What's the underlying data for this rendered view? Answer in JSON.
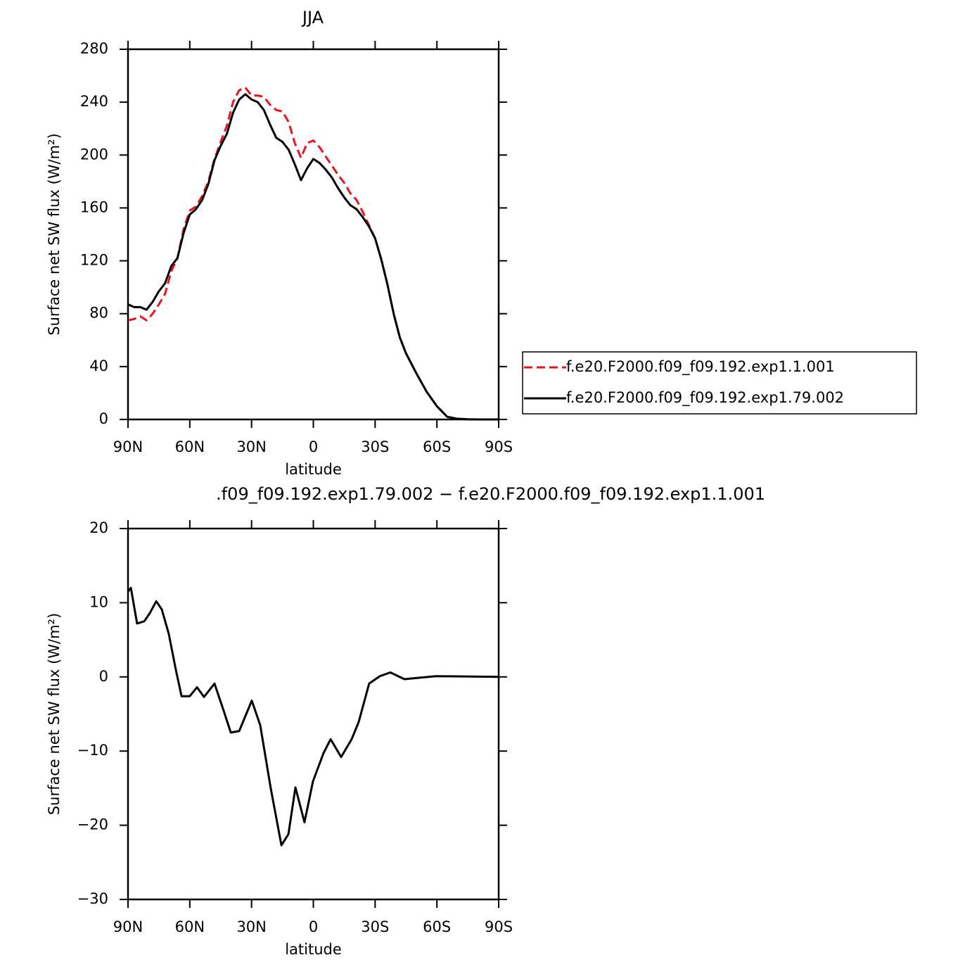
{
  "chart_data": [
    {
      "type": "line",
      "title": "JJA",
      "xlabel": "latitude",
      "ylabel": "Surface net SW flux (W/m²)",
      "x": [
        90,
        87,
        84,
        81,
        78,
        75,
        72,
        69,
        66,
        63,
        60,
        57,
        54,
        51,
        48,
        45,
        42,
        39,
        36,
        33,
        30,
        27,
        24,
        21,
        18,
        15,
        12,
        9,
        6,
        3,
        0,
        -3,
        -6,
        -9,
        -12,
        -15,
        -18,
        -21,
        -24,
        -27,
        -30,
        -33,
        -36,
        -39,
        -42,
        -45,
        -50,
        -55,
        -60,
        -65,
        -70,
        -75,
        -80,
        -85,
        -90
      ],
      "series": [
        {
          "name": "f.e20.F2000.f09_f09.192.exp1.1.001",
          "color": "#e8141c",
          "dashed": true,
          "values": [
            75,
            76,
            78,
            75,
            80,
            87,
            95,
            112,
            122,
            144,
            158,
            161,
            169,
            180,
            197,
            210,
            222,
            240,
            249,
            251,
            245,
            245,
            244,
            238,
            234,
            233,
            225,
            209,
            198,
            209,
            211,
            206,
            199,
            192,
            185,
            179,
            171,
            166,
            157,
            147,
            137,
            121,
            102,
            80,
            62,
            50,
            35,
            21,
            10,
            2,
            0.5,
            0.1,
            0,
            0,
            0
          ]
        },
        {
          "name": "f.e20.F2000.f09_f09.192.exp1.79.002",
          "color": "#000000",
          "dashed": false,
          "values": [
            87,
            85,
            85,
            83,
            89,
            97,
            103,
            116,
            122,
            141,
            155,
            159,
            166,
            178,
            196,
            207,
            216,
            232,
            242,
            246,
            242,
            240,
            234,
            223,
            213,
            210,
            204,
            193,
            181,
            190,
            197,
            194,
            189,
            183,
            175,
            168,
            162,
            159,
            153,
            146,
            137,
            121,
            102,
            80,
            62,
            50,
            35,
            21,
            10,
            2,
            0.5,
            0.1,
            0,
            0,
            0
          ]
        }
      ],
      "xlim": [
        90,
        -90
      ],
      "xticks": [
        {
          "value": 90,
          "label": "90N"
        },
        {
          "value": 60,
          "label": "60N"
        },
        {
          "value": 30,
          "label": "30N"
        },
        0,
        {
          "value": -30,
          "label": "30S"
        },
        {
          "value": -60,
          "label": "60S"
        },
        {
          "value": -90,
          "label": "90S"
        }
      ],
      "ylim": [
        0,
        280
      ],
      "yticks": [
        0,
        40,
        80,
        120,
        160,
        200,
        240,
        280
      ],
      "legend": "right"
    },
    {
      "type": "line",
      "title": ".f09_f09.192.exp1.79.002 − f.e20.F2000.f09_f09.192.exp1.1.001",
      "xlabel": "latitude",
      "ylabel": "Surface net SW flux (W/m²)",
      "x": [
        90,
        88.6,
        85.6,
        82.1,
        79.4,
        76.3,
        73.6,
        70.2,
        66.8,
        64,
        60,
        56.5,
        53.1,
        48,
        43.5,
        40.1,
        36,
        29.9,
        25.8,
        20.7,
        15.5,
        12.1,
        8.7,
        4.3,
        0.2,
        -4.9,
        -8.4,
        -13.5,
        -18.6,
        -22,
        -27.1,
        -32.3,
        -37.4,
        -44.2,
        -59.6,
        -90
      ],
      "series": [
        {
          "color": "#000000",
          "dashed": false,
          "values": [
            11.5,
            12,
            7.2,
            7.5,
            8.6,
            10.2,
            9.1,
            5.8,
            1,
            -2.6,
            -2.6,
            -1.4,
            -2.7,
            -0.9,
            -4.6,
            -7.5,
            -7.3,
            -3.2,
            -6.5,
            -15,
            -22.7,
            -21.2,
            -14.9,
            -19.6,
            -14.1,
            -10.3,
            -8.4,
            -10.8,
            -8.4,
            -6.1,
            -0.9,
            0.1,
            0.6,
            -0.3,
            0.1,
            0
          ]
        }
      ],
      "xlim": [
        90,
        -90
      ],
      "xticks": [
        {
          "value": 90,
          "label": "90N"
        },
        {
          "value": 60,
          "label": "60N"
        },
        {
          "value": 30,
          "label": "30N"
        },
        0,
        {
          "value": -30,
          "label": "30S"
        },
        {
          "value": -60,
          "label": "60S"
        },
        {
          "value": -90,
          "label": "90S"
        }
      ],
      "ylim": [
        -30,
        20
      ],
      "yticks": [
        {
          "value": -30,
          "label": "−30"
        },
        {
          "value": -20,
          "label": "−20"
        },
        {
          "value": -10,
          "label": "−10"
        },
        0,
        10,
        20
      ]
    }
  ]
}
